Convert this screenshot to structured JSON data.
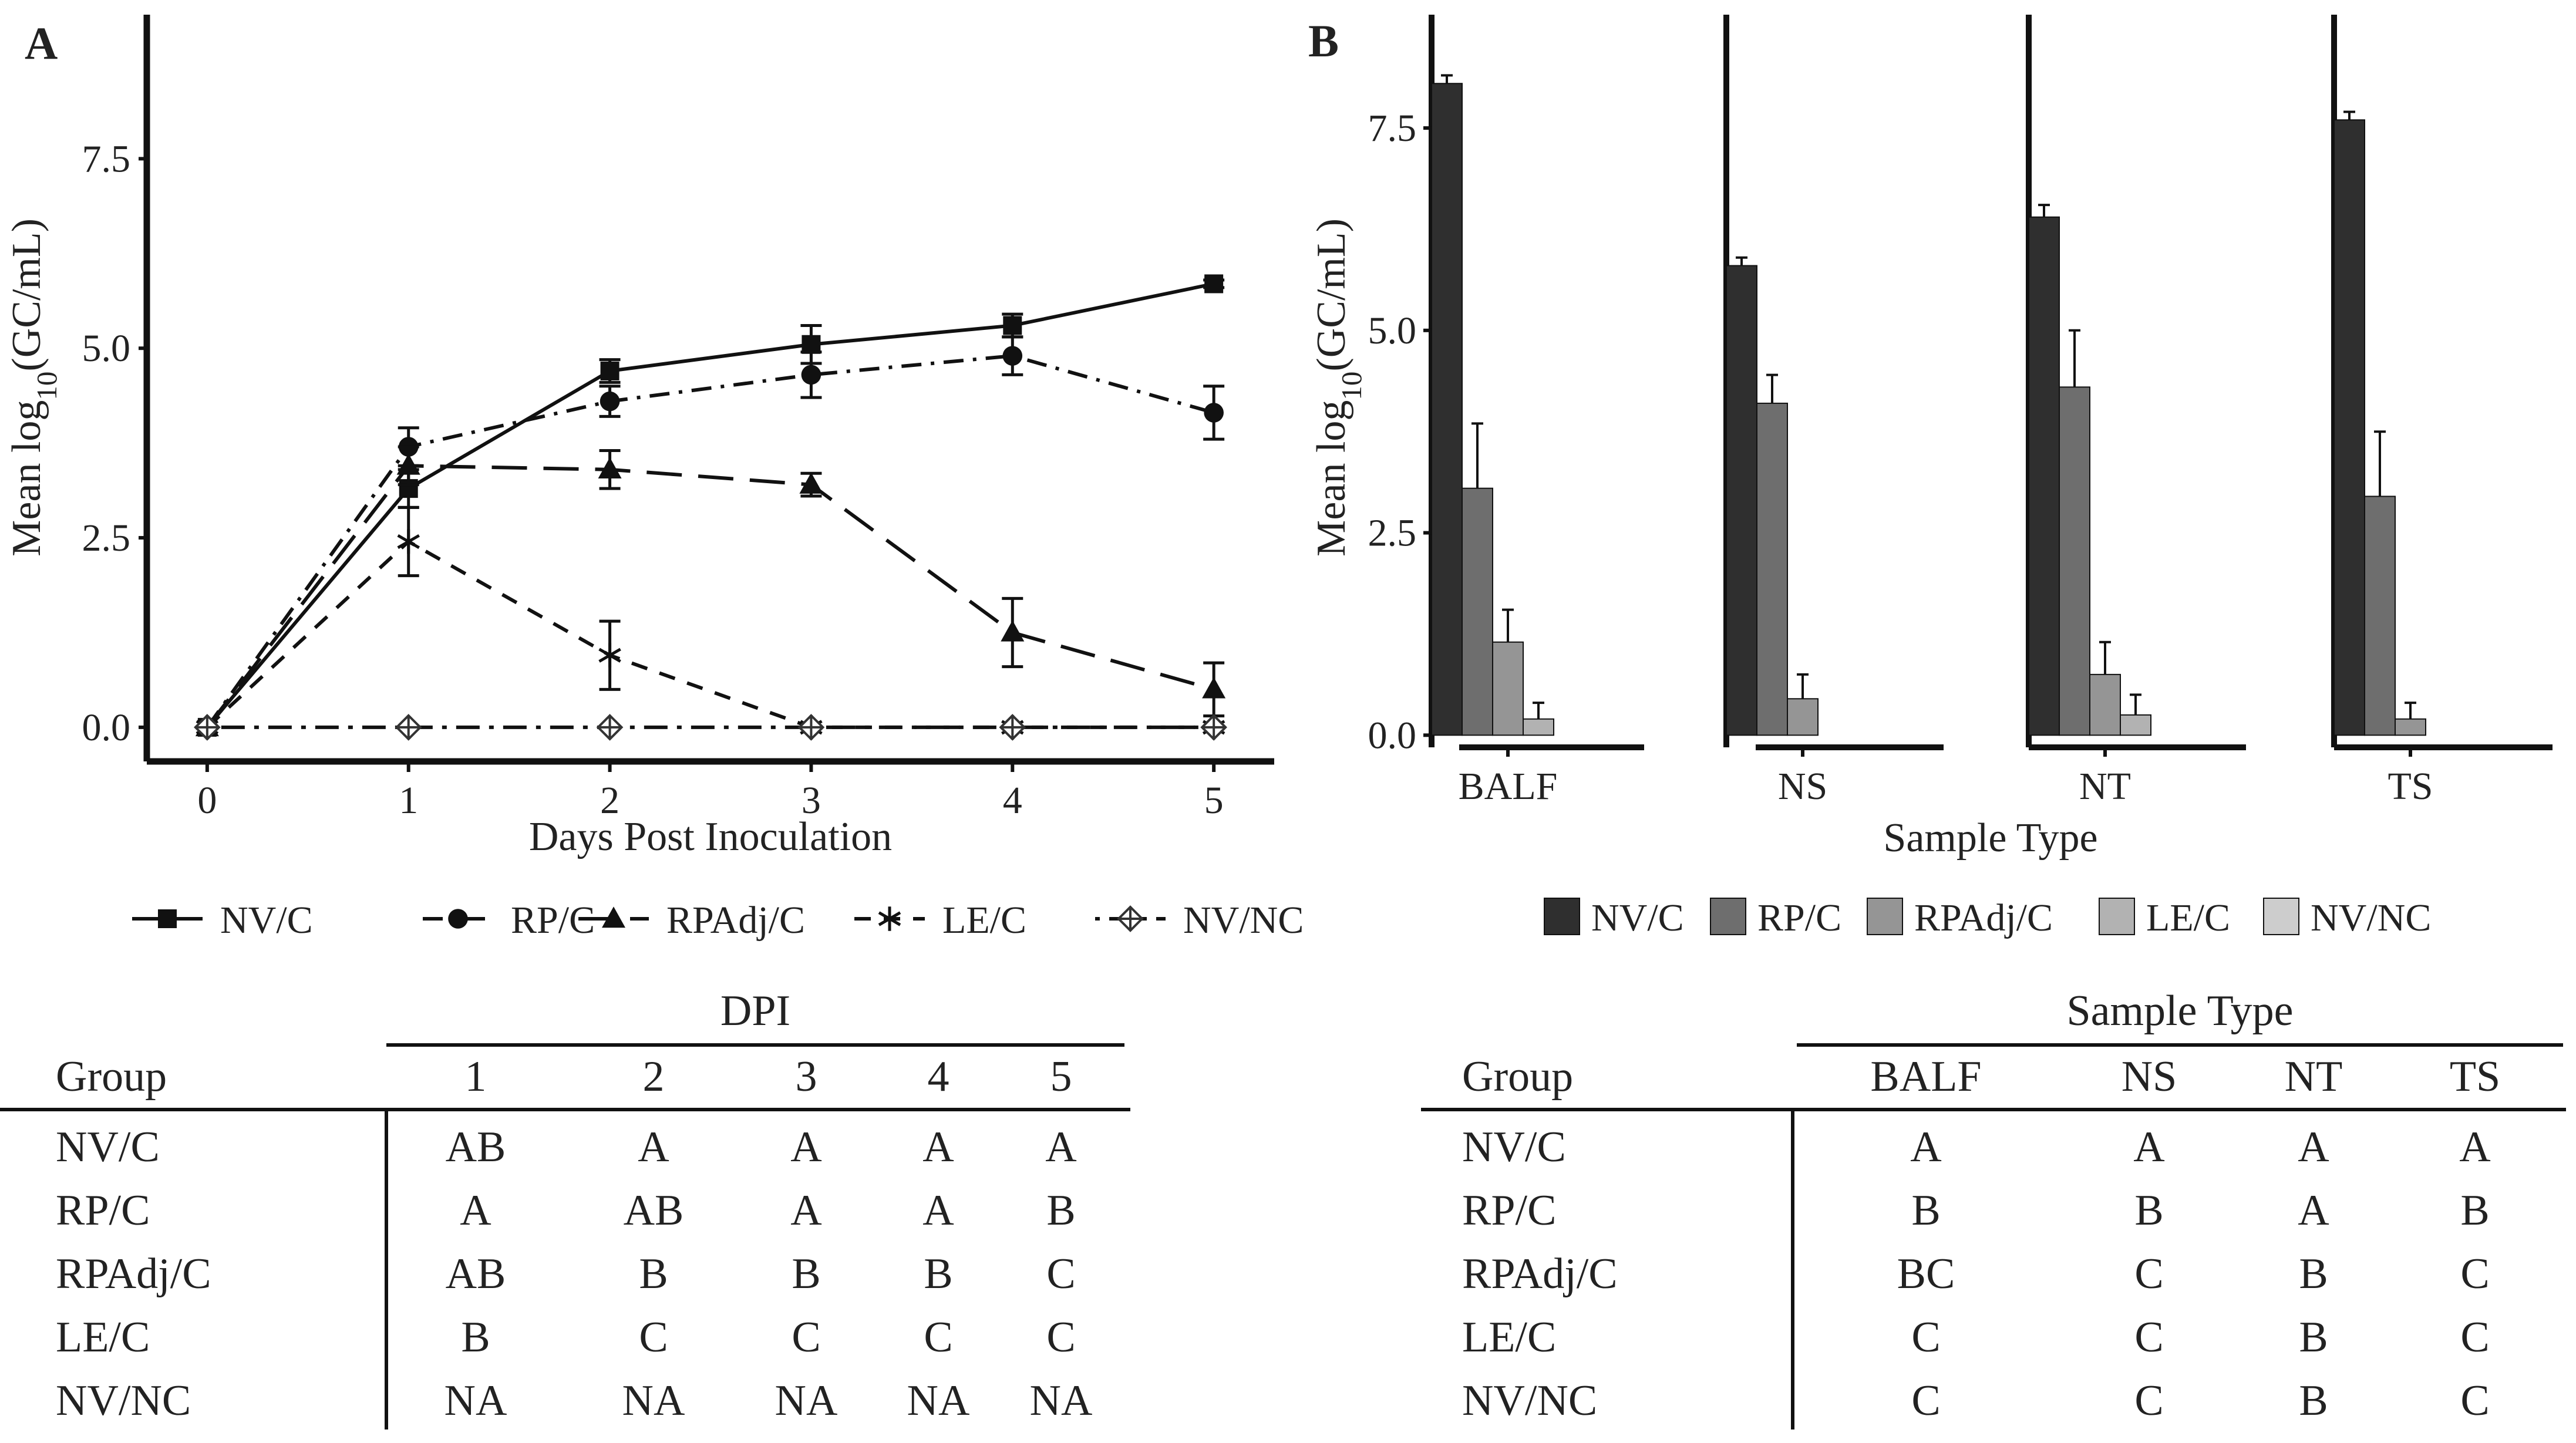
{
  "panel_a": {
    "label": "A",
    "legend": [
      "NV/C",
      "RP/C",
      "RPAdj/C",
      "LE/C",
      "NV/NC"
    ],
    "table": {
      "group_header": "Group",
      "span_header": "DPI",
      "columns": [
        "1",
        "2",
        "3",
        "4",
        "5"
      ],
      "rows": [
        {
          "group": "NV/C",
          "cells": [
            "AB",
            "A",
            "A",
            "A",
            "A"
          ]
        },
        {
          "group": "RP/C",
          "cells": [
            "A",
            "AB",
            "A",
            "A",
            "B"
          ]
        },
        {
          "group": "RPAdj/C",
          "cells": [
            "AB",
            "B",
            "B",
            "B",
            "C"
          ]
        },
        {
          "group": "LE/C",
          "cells": [
            "B",
            "C",
            "C",
            "C",
            "C"
          ]
        },
        {
          "group": "NV/NC",
          "cells": [
            "NA",
            "NA",
            "NA",
            "NA",
            "NA"
          ]
        }
      ]
    }
  },
  "panel_b": {
    "label": "B",
    "legend": [
      "NV/C",
      "RP/C",
      "RPAdj/C",
      "LE/C",
      "NV/NC"
    ],
    "table": {
      "group_header": "Group",
      "span_header": "Sample Type",
      "columns": [
        "BALF",
        "NS",
        "NT",
        "TS"
      ],
      "rows": [
        {
          "group": "NV/C",
          "cells": [
            "A",
            "A",
            "A",
            "A"
          ]
        },
        {
          "group": "RP/C",
          "cells": [
            "B",
            "B",
            "A",
            "B"
          ]
        },
        {
          "group": "RPAdj/C",
          "cells": [
            "BC",
            "C",
            "B",
            "C"
          ]
        },
        {
          "group": "LE/C",
          "cells": [
            "C",
            "C",
            "B",
            "C"
          ]
        },
        {
          "group": "NV/NC",
          "cells": [
            "C",
            "C",
            "B",
            "C"
          ]
        }
      ]
    }
  },
  "chart_data": [
    {
      "type": "line",
      "xlabel": "Days Post Inoculation",
      "ylabel": "Mean log10(GC/mL)",
      "x": [
        0,
        1,
        2,
        3,
        4,
        5
      ],
      "xlim": [
        -0.3,
        5.3
      ],
      "ylim": [
        -0.45,
        9.4
      ],
      "yticks": [
        "0.0",
        "2.5",
        "5.0",
        "7.5"
      ],
      "grid": false,
      "legend_position": "bottom",
      "series": [
        {
          "name": "NV/C",
          "values": [
            0,
            3.15,
            4.7,
            5.05,
            5.3,
            5.85
          ],
          "errors": [
            0,
            0.25,
            0.15,
            0.25,
            0.15,
            0.05
          ],
          "marker": "square",
          "dash": "solid"
        },
        {
          "name": "RP/C",
          "values": [
            0,
            3.7,
            4.3,
            4.65,
            4.9,
            4.15
          ],
          "errors": [
            0,
            0.25,
            0.2,
            0.3,
            0.25,
            0.35
          ],
          "marker": "circle",
          "dash": "dashdot"
        },
        {
          "name": "RPAdj/C",
          "values": [
            0,
            3.45,
            3.4,
            3.2,
            1.25,
            0.5
          ],
          "errors": [
            0,
            0.25,
            0.25,
            0.15,
            0.45,
            0.35
          ],
          "marker": "triangle",
          "dash": "longdash"
        },
        {
          "name": "LE/C",
          "values": [
            0,
            2.45,
            0.95,
            0,
            0,
            0
          ],
          "errors": [
            0,
            0.45,
            0.45,
            0,
            0,
            0
          ],
          "marker": "asterisk",
          "dash": "dash"
        },
        {
          "name": "NV/NC",
          "values": [
            0,
            0,
            0,
            0,
            0,
            0
          ],
          "errors": [
            0,
            0,
            0,
            0,
            0,
            0
          ],
          "marker": "diamond-cross",
          "dash": "dotdash"
        }
      ]
    },
    {
      "type": "bar",
      "xlabel": "Sample Type",
      "ylabel": "Mean log10(GC/mL)",
      "categories": [
        "BALF",
        "NS",
        "NT",
        "TS"
      ],
      "ylim": [
        -0.15,
        8.9
      ],
      "yticks": [
        "0.0",
        "2.5",
        "5.0",
        "7.5"
      ],
      "grid": false,
      "legend_position": "bottom",
      "series": [
        {
          "name": "NV/C",
          "color": "#2f2f2f",
          "values": [
            8.05,
            5.8,
            6.4,
            7.6
          ],
          "errors": [
            0.1,
            0.1,
            0.15,
            0.1
          ]
        },
        {
          "name": "RP/C",
          "color": "#6e6e6e",
          "values": [
            3.05,
            4.1,
            4.3,
            2.95
          ],
          "errors": [
            0.8,
            0.35,
            0.7,
            0.8
          ]
        },
        {
          "name": "RPAdj/C",
          "color": "#959595",
          "values": [
            1.15,
            0.45,
            0.75,
            0.2
          ],
          "errors": [
            0.4,
            0.3,
            0.4,
            0.2
          ]
        },
        {
          "name": "LE/C",
          "color": "#b2b2b2",
          "values": [
            0.2,
            0,
            0.25,
            0
          ],
          "errors": [
            0.2,
            0,
            0.25,
            0
          ]
        },
        {
          "name": "NV/NC",
          "color": "#cdcdcd",
          "values": [
            0,
            0,
            0,
            0
          ],
          "errors": [
            0,
            0,
            0,
            0
          ]
        }
      ]
    }
  ]
}
